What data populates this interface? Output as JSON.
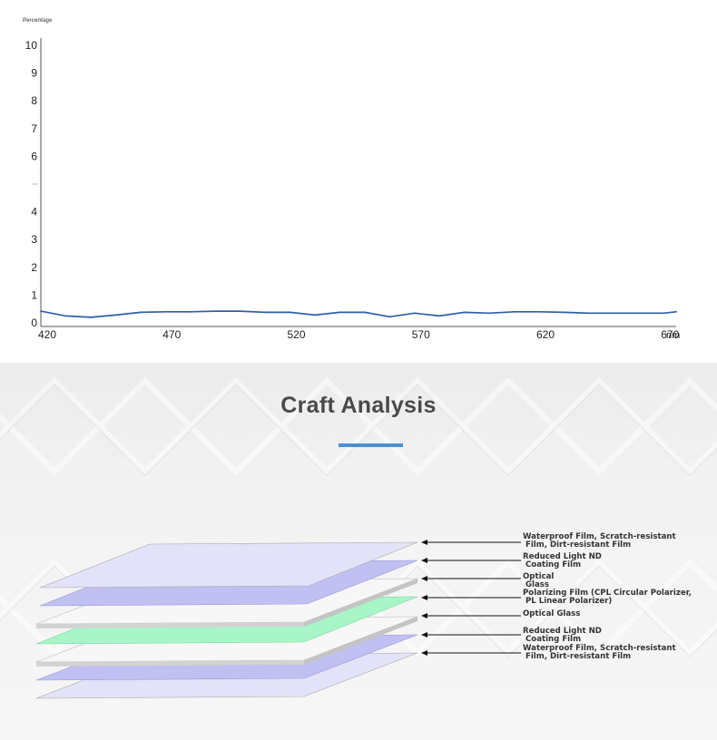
{
  "chart_data": {
    "type": "line",
    "ylabel": "Percentage",
    "xunit": "nm",
    "xlim": [
      420,
      675
    ],
    "ylim": [
      0,
      10
    ],
    "x_ticks": [
      420,
      470,
      520,
      570,
      620,
      670
    ],
    "y_ticks": [
      0,
      1,
      2,
      3,
      4,
      5,
      6,
      7,
      8,
      9,
      10
    ],
    "y_tick_labels": [
      "0",
      "1",
      "2",
      "3",
      "4",
      "",
      "6",
      "7",
      "8",
      "9",
      "10"
    ],
    "grid": false,
    "line_color": "#2f5fa8",
    "series": [
      {
        "x": [
          420,
          430,
          440,
          450,
          460,
          470,
          480,
          490,
          500,
          510,
          520,
          530,
          540,
          550,
          560,
          570,
          580,
          590,
          600,
          610,
          620,
          630,
          640,
          650,
          660,
          670,
          675
        ],
        "values": [
          0.42,
          0.25,
          0.2,
          0.28,
          0.38,
          0.4,
          0.4,
          0.42,
          0.42,
          0.38,
          0.38,
          0.28,
          0.38,
          0.38,
          0.22,
          0.35,
          0.25,
          0.38,
          0.35,
          0.4,
          0.4,
          0.38,
          0.35,
          0.35,
          0.35,
          0.35,
          0.4
        ]
      }
    ]
  },
  "craft": {
    "title": "Craft Analysis",
    "accent_color": "#4a90d0",
    "layers": [
      {
        "label": "Waterproof Film, Scratch-resistant\n Film, Dirt-resistant Film",
        "color": "#e2e2f8"
      },
      {
        "label": "Reduced Light ND\n Coating Film",
        "color": "#c0c0f2"
      },
      {
        "label": "Optical\n Glass",
        "color": "#f5f5f5"
      },
      {
        "label": "Polarizing Film (CPL Circular Polarizer,\n PL Linear Polarizer)",
        "color": "#a8f5c8"
      },
      {
        "label": "Optical Glass",
        "color": "#f5f5f5"
      },
      {
        "label": "Reduced Light ND\n Coating Film",
        "color": "#c0c0f2"
      },
      {
        "label": "Waterproof Film, Scratch-resistant\n Film, Dirt-resistant Film",
        "color": "#e2e2f8"
      }
    ]
  }
}
